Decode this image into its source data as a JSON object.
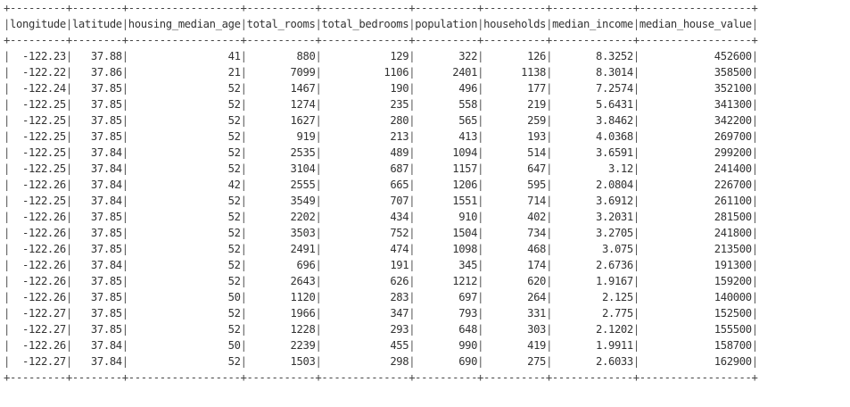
{
  "table": {
    "columns": [
      "longitude",
      "latitude",
      "housing_median_age",
      "total_rooms",
      "total_bedrooms",
      "population",
      "households",
      "median_income",
      "median_house_value"
    ],
    "rows": [
      [
        "-122.23",
        "37.88",
        "41",
        "880",
        "129",
        "322",
        "126",
        "8.3252",
        "452600"
      ],
      [
        "-122.22",
        "37.86",
        "21",
        "7099",
        "1106",
        "2401",
        "1138",
        "8.3014",
        "358500"
      ],
      [
        "-122.24",
        "37.85",
        "52",
        "1467",
        "190",
        "496",
        "177",
        "7.2574",
        "352100"
      ],
      [
        "-122.25",
        "37.85",
        "52",
        "1274",
        "235",
        "558",
        "219",
        "5.6431",
        "341300"
      ],
      [
        "-122.25",
        "37.85",
        "52",
        "1627",
        "280",
        "565",
        "259",
        "3.8462",
        "342200"
      ],
      [
        "-122.25",
        "37.85",
        "52",
        "919",
        "213",
        "413",
        "193",
        "4.0368",
        "269700"
      ],
      [
        "-122.25",
        "37.84",
        "52",
        "2535",
        "489",
        "1094",
        "514",
        "3.6591",
        "299200"
      ],
      [
        "-122.25",
        "37.84",
        "52",
        "3104",
        "687",
        "1157",
        "647",
        "3.12",
        "241400"
      ],
      [
        "-122.26",
        "37.84",
        "42",
        "2555",
        "665",
        "1206",
        "595",
        "2.0804",
        "226700"
      ],
      [
        "-122.25",
        "37.84",
        "52",
        "3549",
        "707",
        "1551",
        "714",
        "3.6912",
        "261100"
      ],
      [
        "-122.26",
        "37.85",
        "52",
        "2202",
        "434",
        "910",
        "402",
        "3.2031",
        "281500"
      ],
      [
        "-122.26",
        "37.85",
        "52",
        "3503",
        "752",
        "1504",
        "734",
        "3.2705",
        "241800"
      ],
      [
        "-122.26",
        "37.85",
        "52",
        "2491",
        "474",
        "1098",
        "468",
        "3.075",
        "213500"
      ],
      [
        "-122.26",
        "37.84",
        "52",
        "696",
        "191",
        "345",
        "174",
        "2.6736",
        "191300"
      ],
      [
        "-122.26",
        "37.85",
        "52",
        "2643",
        "626",
        "1212",
        "620",
        "1.9167",
        "159200"
      ],
      [
        "-122.26",
        "37.85",
        "50",
        "1120",
        "283",
        "697",
        "264",
        "2.125",
        "140000"
      ],
      [
        "-122.27",
        "37.85",
        "52",
        "1966",
        "347",
        "793",
        "331",
        "2.775",
        "152500"
      ],
      [
        "-122.27",
        "37.85",
        "52",
        "1228",
        "293",
        "648",
        "303",
        "2.1202",
        "155500"
      ],
      [
        "-122.26",
        "37.84",
        "50",
        "2239",
        "455",
        "990",
        "419",
        "1.9911",
        "158700"
      ],
      [
        "-122.27",
        "37.84",
        "52",
        "1503",
        "298",
        "690",
        "275",
        "2.6033",
        "162900"
      ]
    ]
  }
}
